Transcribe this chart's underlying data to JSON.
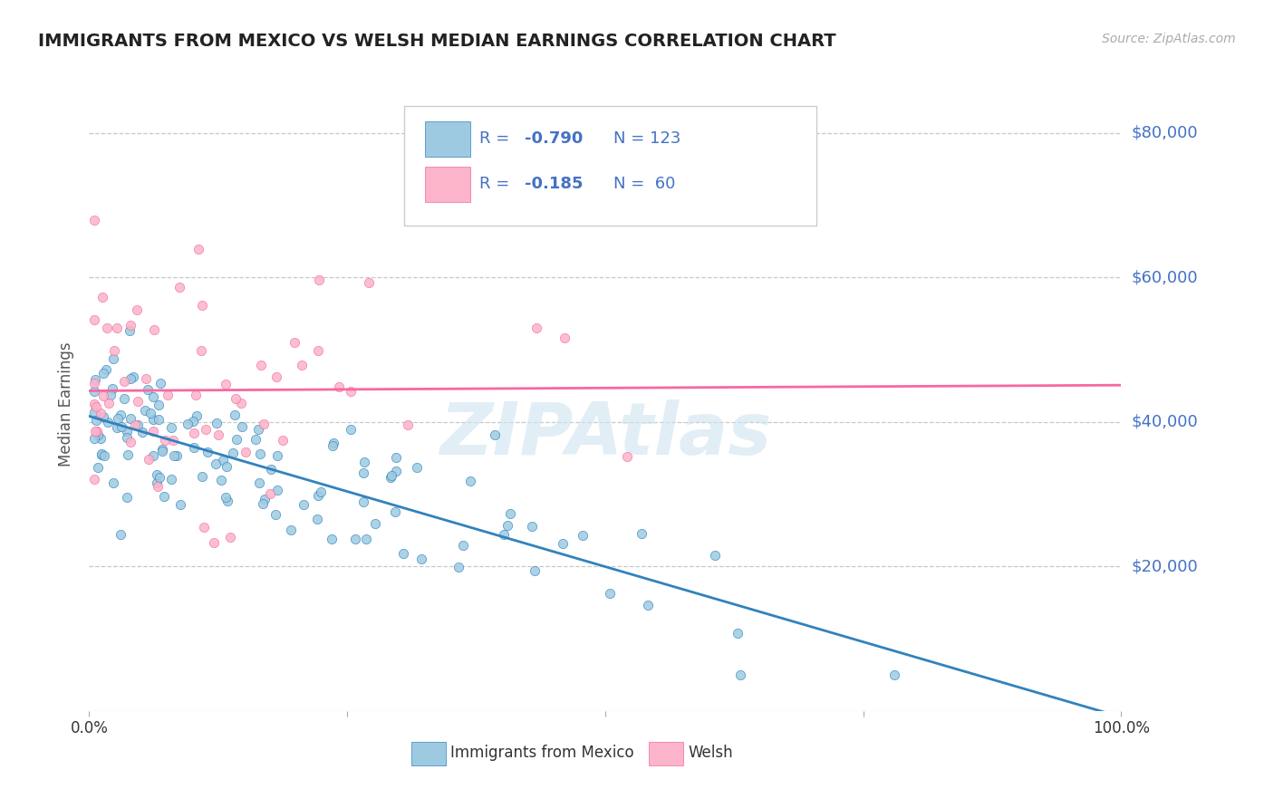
{
  "title": "IMMIGRANTS FROM MEXICO VS WELSH MEDIAN EARNINGS CORRELATION CHART",
  "source": "Source: ZipAtlas.com",
  "ylabel": "Median Earnings",
  "xlim": [
    0,
    100
  ],
  "ylim": [
    0,
    85000
  ],
  "yticks": [
    20000,
    40000,
    60000,
    80000
  ],
  "ytick_labels": [
    "$20,000",
    "$40,000",
    "$60,000",
    "$80,000"
  ],
  "blue_color": "#9ecae1",
  "pink_color": "#fbb4c9",
  "blue_line_color": "#3182bd",
  "pink_line_color": "#f768a1",
  "R_blue": -0.79,
  "N_blue": 123,
  "R_pink": -0.185,
  "N_pink": 60,
  "watermark": "ZIPAtlas",
  "legend_label_blue": "Immigrants from Mexico",
  "legend_label_pink": "Welsh",
  "background_color": "#ffffff",
  "grid_color": "#bbbbbb",
  "title_color": "#222222",
  "axis_label_color": "#555555",
  "ytick_color": "#4472c4",
  "legend_text_color": "#4472c4",
  "source_color": "#aaaaaa",
  "watermark_color": "#d0e4f0"
}
